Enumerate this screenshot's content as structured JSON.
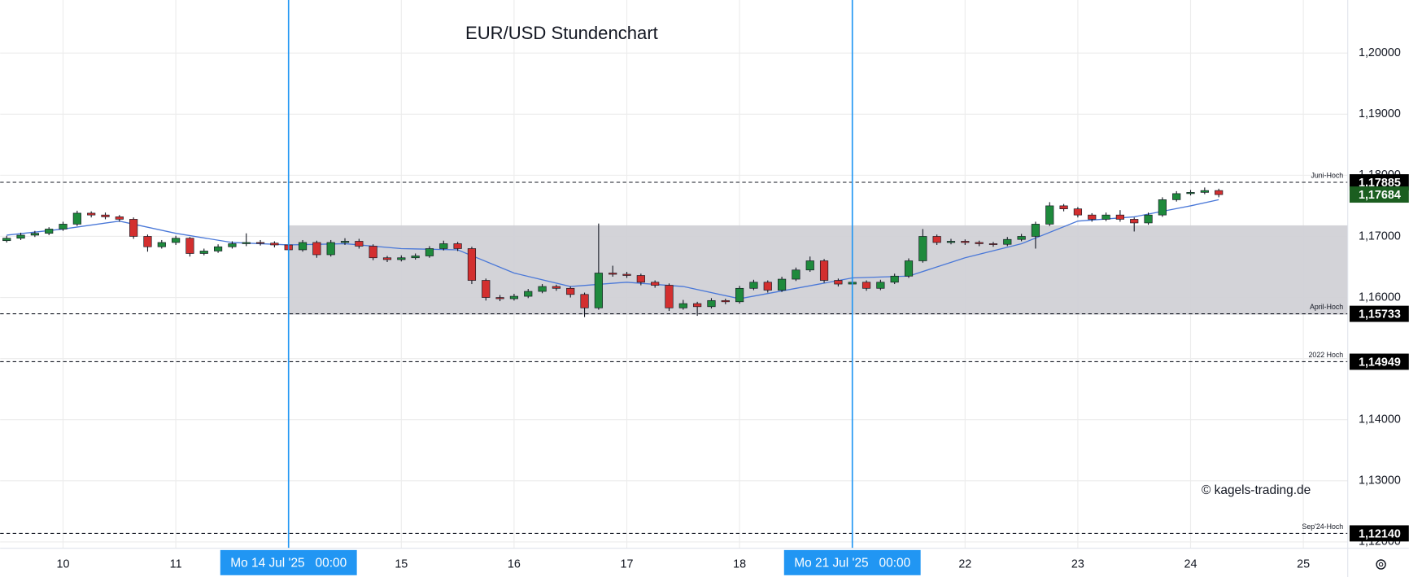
{
  "chart_data": {
    "type": "candlestick",
    "title": "EUR/USD Stundenchart",
    "watermark": "© kagels-trading.de",
    "xlim": [
      -0.558,
      11.394
    ],
    "ylim": [
      1.11897,
      1.20868
    ],
    "yticks": [
      {
        "value": 1.12,
        "label": "1,12000"
      },
      {
        "value": 1.13,
        "label": "1,13000"
      },
      {
        "value": 1.14,
        "label": "1,14000"
      },
      {
        "value": 1.15,
        "label": "1,15000"
      },
      {
        "value": 1.16,
        "label": "1,16000"
      },
      {
        "value": 1.17,
        "label": "1,17000"
      },
      {
        "value": 1.18,
        "label": "1,18000"
      },
      {
        "value": 1.19,
        "label": "1,19000"
      },
      {
        "value": 1.2,
        "label": "1,20000"
      }
    ],
    "xticks": [
      {
        "value": 0,
        "label": "10"
      },
      {
        "value": 1,
        "label": "11"
      },
      {
        "value": 3,
        "label": "15"
      },
      {
        "value": 4,
        "label": "16"
      },
      {
        "value": 5,
        "label": "17"
      },
      {
        "value": 6,
        "label": "18"
      },
      {
        "value": 8,
        "label": "22"
      },
      {
        "value": 9,
        "label": "23"
      },
      {
        "value": 10,
        "label": "24"
      },
      {
        "value": 11,
        "label": "25"
      }
    ],
    "grid": true,
    "up_color": "#1e8a3c",
    "down_color": "#d32f2f",
    "marker_color": "#2196f3",
    "ma_color": "#4a78d8",
    "range_color": "#d1d1d6",
    "markers": [
      {
        "x": 2,
        "label": "Mo 14 Jul '25   00:00"
      },
      {
        "x": 7,
        "label": "Mo 21 Jul '25   00:00"
      }
    ],
    "range": [
      1.1572,
      1.1718
    ],
    "levels": [
      {
        "name": "Juni-Hoch",
        "value": 1.17885,
        "label": "1,17885"
      },
      {
        "name": "April-Hoch",
        "value": 1.15733,
        "label": "1,15733"
      },
      {
        "name": "2022 Hoch",
        "value": 1.14949,
        "label": "1,14949"
      },
      {
        "name": "Sep'24-Hoch",
        "value": 1.1214,
        "label": "1,12140"
      }
    ],
    "last": {
      "value": 1.17684,
      "label": "1,17684",
      "color": "#1b5e20"
    },
    "x": [
      -0.5,
      -0.375,
      -0.25,
      -0.125,
      0,
      0.125,
      0.25,
      0.375,
      0.5,
      0.625,
      0.75,
      0.875,
      1,
      1.125,
      1.25,
      1.375,
      1.5,
      1.625,
      1.75,
      1.875,
      2,
      2.125,
      2.25,
      2.375,
      2.5,
      2.625,
      2.75,
      2.875,
      3,
      3.125,
      3.25,
      3.375,
      3.5,
      3.625,
      3.75,
      3.875,
      4,
      4.125,
      4.25,
      4.375,
      4.5,
      4.625,
      4.75,
      4.875,
      5,
      5.125,
      5.25,
      5.375,
      5.5,
      5.625,
      5.75,
      5.875,
      6,
      6.125,
      6.25,
      6.375,
      6.5,
      6.625,
      6.75,
      6.875,
      7,
      7.125,
      7.25,
      7.375,
      7.5,
      7.625,
      7.75,
      7.875,
      8,
      8.125,
      8.25,
      8.375,
      8.5,
      8.625,
      8.75,
      8.875,
      9,
      9.125,
      9.25,
      9.375,
      9.5,
      9.625,
      9.75,
      9.875,
      10,
      10.125,
      10.25
    ],
    "candles": [
      [
        1.1693,
        1.1701,
        1.169,
        1.1697
      ],
      [
        1.1697,
        1.1706,
        1.1694,
        1.1702
      ],
      [
        1.1702,
        1.1709,
        1.1699,
        1.1705
      ],
      [
        1.1705,
        1.1715,
        1.1702,
        1.1712
      ],
      [
        1.1712,
        1.1724,
        1.1709,
        1.172
      ],
      [
        1.172,
        1.1742,
        1.1717,
        1.1738
      ],
      [
        1.1738,
        1.1741,
        1.1731,
        1.1735
      ],
      [
        1.1735,
        1.1739,
        1.1728,
        1.1732
      ],
      [
        1.1732,
        1.1735,
        1.1724,
        1.1728
      ],
      [
        1.1728,
        1.1731,
        1.1696,
        1.17
      ],
      [
        1.17,
        1.1703,
        1.1675,
        1.1683
      ],
      [
        1.1683,
        1.1694,
        1.168,
        1.169
      ],
      [
        1.169,
        1.1701,
        1.1686,
        1.1697
      ],
      [
        1.1697,
        1.1699,
        1.1667,
        1.1672
      ],
      [
        1.1672,
        1.168,
        1.1669,
        1.1676
      ],
      [
        1.1676,
        1.1687,
        1.1673,
        1.1683
      ],
      [
        1.1683,
        1.1692,
        1.168,
        1.1688
      ],
      [
        1.1688,
        1.1705,
        1.1684,
        1.169
      ],
      [
        1.169,
        1.1694,
        1.1685,
        1.1689
      ],
      [
        1.1689,
        1.1692,
        1.1682,
        1.1686
      ],
      [
        1.1686,
        1.1689,
        1.1674,
        1.1678
      ],
      [
        1.1678,
        1.1694,
        1.1675,
        1.169
      ],
      [
        1.169,
        1.1693,
        1.1665,
        1.167
      ],
      [
        1.167,
        1.1694,
        1.1667,
        1.169
      ],
      [
        1.169,
        1.1697,
        1.1686,
        1.1692
      ],
      [
        1.1692,
        1.1696,
        1.168,
        1.1684
      ],
      [
        1.1684,
        1.1687,
        1.1661,
        1.1665
      ],
      [
        1.1665,
        1.1668,
        1.1658,
        1.1662
      ],
      [
        1.1662,
        1.1669,
        1.1659,
        1.1665
      ],
      [
        1.1665,
        1.1672,
        1.1662,
        1.1668
      ],
      [
        1.1668,
        1.1684,
        1.1665,
        1.168
      ],
      [
        1.168,
        1.1693,
        1.1677,
        1.1688
      ],
      [
        1.1688,
        1.1691,
        1.1676,
        1.168
      ],
      [
        1.168,
        1.1683,
        1.1622,
        1.1628
      ],
      [
        1.1628,
        1.1631,
        1.1595,
        1.16
      ],
      [
        1.16,
        1.1604,
        1.1594,
        1.1598
      ],
      [
        1.1598,
        1.1606,
        1.1595,
        1.1602
      ],
      [
        1.1602,
        1.1614,
        1.1599,
        1.161
      ],
      [
        1.161,
        1.1622,
        1.1607,
        1.1618
      ],
      [
        1.1618,
        1.1621,
        1.1611,
        1.1615
      ],
      [
        1.1615,
        1.1618,
        1.16,
        1.1605
      ],
      [
        1.1605,
        1.1608,
        1.1568,
        1.1583
      ],
      [
        1.1583,
        1.1721,
        1.158,
        1.164
      ],
      [
        1.164,
        1.1652,
        1.1634,
        1.1638
      ],
      [
        1.1638,
        1.1642,
        1.1632,
        1.1636
      ],
      [
        1.1636,
        1.1639,
        1.162,
        1.1625
      ],
      [
        1.1625,
        1.1628,
        1.1616,
        1.162
      ],
      [
        1.162,
        1.1623,
        1.1578,
        1.1583
      ],
      [
        1.1583,
        1.1596,
        1.158,
        1.159
      ],
      [
        1.159,
        1.1593,
        1.157,
        1.1585
      ],
      [
        1.1585,
        1.1599,
        1.1582,
        1.1595
      ],
      [
        1.1595,
        1.1598,
        1.1589,
        1.1593
      ],
      [
        1.1593,
        1.1619,
        1.159,
        1.1615
      ],
      [
        1.1615,
        1.1629,
        1.1612,
        1.1625
      ],
      [
        1.1625,
        1.1628,
        1.1608,
        1.1612
      ],
      [
        1.1612,
        1.1634,
        1.1609,
        1.163
      ],
      [
        1.163,
        1.1649,
        1.1627,
        1.1645
      ],
      [
        1.1645,
        1.1667,
        1.1642,
        1.166
      ],
      [
        1.166,
        1.1663,
        1.1624,
        1.1628
      ],
      [
        1.1628,
        1.1631,
        1.1618,
        1.1622
      ],
      [
        1.1622,
        1.1629,
        1.1619,
        1.1625
      ],
      [
        1.1625,
        1.1628,
        1.1611,
        1.1615
      ],
      [
        1.1615,
        1.1629,
        1.1612,
        1.1625
      ],
      [
        1.1625,
        1.1639,
        1.1622,
        1.1635
      ],
      [
        1.1635,
        1.1664,
        1.1632,
        1.166
      ],
      [
        1.166,
        1.1712,
        1.1657,
        1.17
      ],
      [
        1.17,
        1.1703,
        1.1686,
        1.169
      ],
      [
        1.169,
        1.1696,
        1.1687,
        1.1692
      ],
      [
        1.1692,
        1.1695,
        1.1686,
        1.169
      ],
      [
        1.169,
        1.1693,
        1.1684,
        1.1688
      ],
      [
        1.1688,
        1.1691,
        1.1683,
        1.1687
      ],
      [
        1.1687,
        1.1699,
        1.1684,
        1.1695
      ],
      [
        1.1695,
        1.1704,
        1.1692,
        1.17
      ],
      [
        1.17,
        1.1724,
        1.168,
        1.172
      ],
      [
        1.172,
        1.1756,
        1.1717,
        1.175
      ],
      [
        1.175,
        1.1753,
        1.1741,
        1.1745
      ],
      [
        1.1745,
        1.1748,
        1.1731,
        1.1735
      ],
      [
        1.1735,
        1.1738,
        1.1724,
        1.1728
      ],
      [
        1.1728,
        1.1739,
        1.1725,
        1.1735
      ],
      [
        1.1735,
        1.1743,
        1.1724,
        1.1728
      ],
      [
        1.1728,
        1.1731,
        1.1708,
        1.1722
      ],
      [
        1.1722,
        1.1739,
        1.1719,
        1.1735
      ],
      [
        1.1735,
        1.1764,
        1.1732,
        1.176
      ],
      [
        1.176,
        1.1774,
        1.1757,
        1.177
      ],
      [
        1.177,
        1.1776,
        1.1767,
        1.1772
      ],
      [
        1.1772,
        1.178,
        1.1769,
        1.1775
      ],
      [
        1.1775,
        1.1778,
        1.1764,
        1.17684
      ]
    ],
    "ma": {
      "x": [
        -0.5,
        0,
        0.5,
        1,
        1.5,
        2,
        2.5,
        3,
        3.5,
        4,
        4.5,
        5,
        5.5,
        6,
        6.5,
        7,
        7.5,
        8,
        8.5,
        9,
        9.5,
        10,
        10.25
      ],
      "values": [
        1.1702,
        1.1712,
        1.1725,
        1.1705,
        1.169,
        1.1686,
        1.1688,
        1.168,
        1.1678,
        1.164,
        1.1618,
        1.1625,
        1.1618,
        1.1598,
        1.1615,
        1.1632,
        1.1635,
        1.1665,
        1.1688,
        1.1725,
        1.1732,
        1.175,
        1.176
      ]
    }
  }
}
